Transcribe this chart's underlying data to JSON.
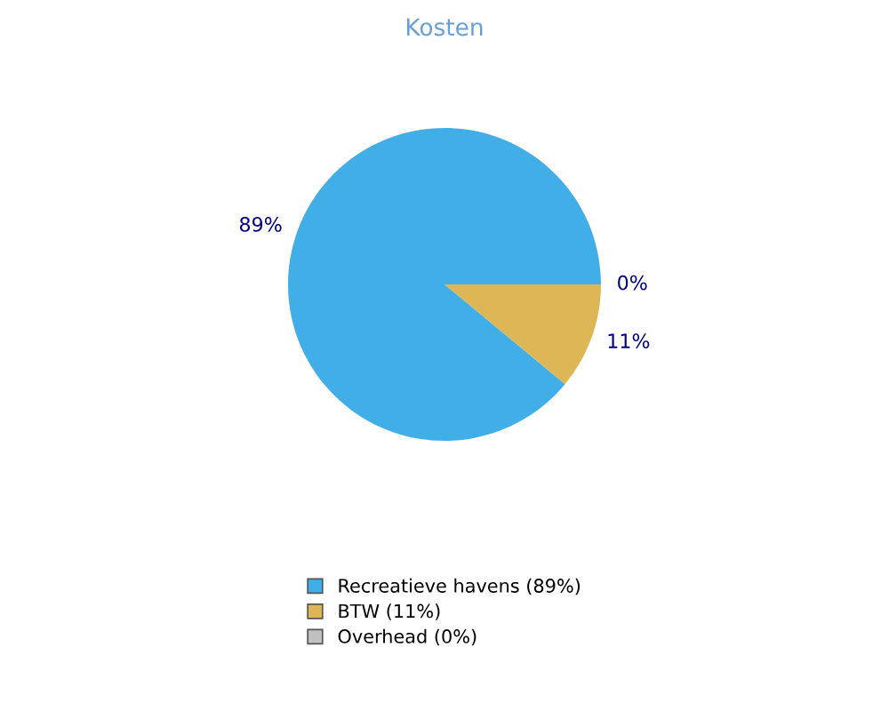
{
  "chart_data": {
    "type": "pie",
    "title": "Kosten",
    "categories": [
      "Recreatieve havens (89%)",
      "BTW (11%)",
      "Overhead (0%)"
    ],
    "values": [
      89,
      11,
      0
    ],
    "colors": [
      "#42aee8",
      "#ddb655",
      "#c0c0c0"
    ],
    "value_labels": [
      "89%",
      "11%",
      "0%"
    ],
    "legend": "bottom"
  }
}
